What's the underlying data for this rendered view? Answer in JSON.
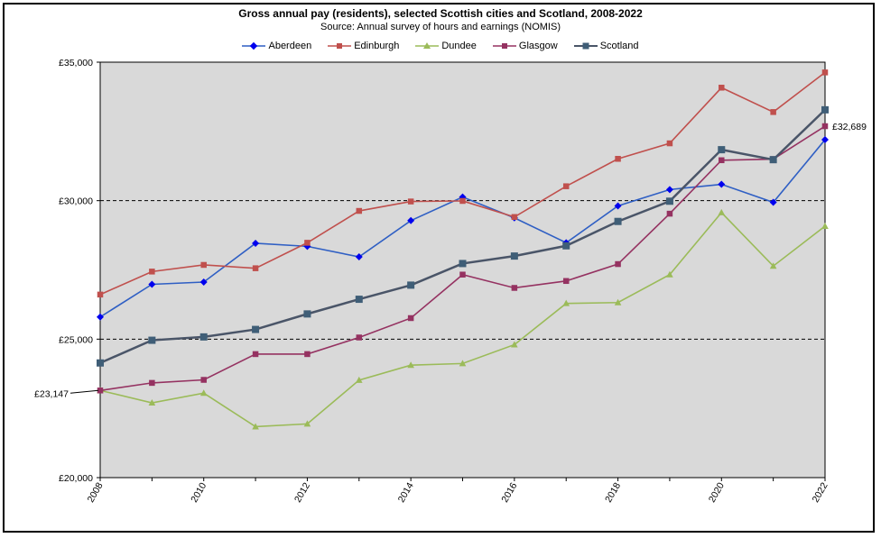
{
  "chart_data": {
    "type": "line",
    "title": "Gross annual pay (residents), selected Scottish cities and Scotland, 2008-2022",
    "subtitle": "Source: Annual survey of hours and earnings (NOMIS)",
    "xlabel": "",
    "ylabel": "",
    "x": [
      2008,
      2009,
      2010,
      2011,
      2012,
      2013,
      2014,
      2015,
      2016,
      2017,
      2018,
      2019,
      2020,
      2021,
      2022
    ],
    "xlim": [
      2008,
      2022
    ],
    "ylim": [
      20000,
      35000
    ],
    "y_ticks": [
      "£20,000",
      "£25,000",
      "£30,000",
      "£35,000"
    ],
    "x_ticks": [
      "2008",
      "2010",
      "2012",
      "2014",
      "2016",
      "2018",
      "2020",
      "2022"
    ],
    "grid": "dashed at £25,000 and £30,000",
    "legend_position": "top",
    "series": [
      {
        "name": "Aberdeen",
        "color": "#2f5fc4",
        "marker_color": "#0000ee",
        "marker": "diamond",
        "values": [
          25800,
          26980,
          27060,
          28460,
          28350,
          27970,
          29280,
          30130,
          29380,
          28480,
          29810,
          30400,
          30590,
          29940,
          32200
        ]
      },
      {
        "name": "Edinburgh",
        "color": "#c0504d",
        "marker_color": "#c0504d",
        "marker": "square",
        "values": [
          26610,
          27440,
          27680,
          27560,
          28480,
          29630,
          29970,
          29990,
          29410,
          30520,
          31510,
          32070,
          34080,
          33200,
          34630
        ]
      },
      {
        "name": "Dundee",
        "color": "#9bbb59",
        "marker_color": "#9bbb59",
        "marker": "triangle",
        "values": [
          23147,
          22700,
          23050,
          21840,
          21940,
          23520,
          24060,
          24120,
          24800,
          26290,
          26320,
          27330,
          29570,
          27640,
          29080
        ]
      },
      {
        "name": "Glasgow",
        "color": "#953261",
        "marker_color": "#953261",
        "marker": "square",
        "values": [
          23147,
          23420,
          23530,
          24460,
          24460,
          25060,
          25760,
          27330,
          26850,
          27100,
          27710,
          29530,
          31460,
          31500,
          32689
        ]
      },
      {
        "name": "Scotland",
        "color": "#4a5568",
        "marker_color": "#3f5e77",
        "marker": "square",
        "values": [
          24140,
          24960,
          25080,
          25350,
          25910,
          26440,
          26950,
          27730,
          28000,
          28370,
          29250,
          29980,
          31840,
          31480,
          33280
        ]
      }
    ],
    "annotations": [
      {
        "text": "£23,147",
        "year": 2008,
        "value": 23147
      },
      {
        "text": "£32,689",
        "year": 2022,
        "value": 32689
      }
    ]
  }
}
